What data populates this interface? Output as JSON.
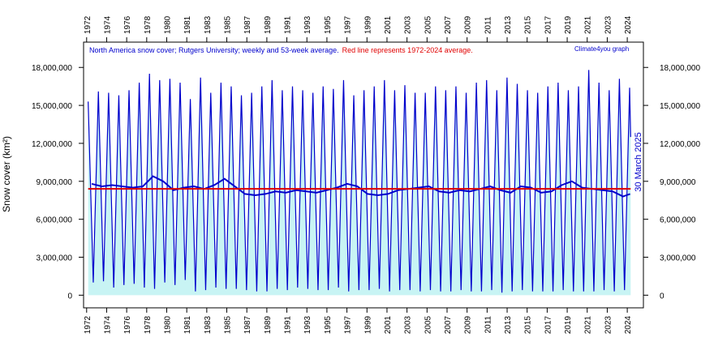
{
  "chart_data": {
    "type": "line",
    "title": "North America  snow cover; Rutgers University; weekly and 53-week average.",
    "subtitle": "Red line represents 1972-2024 average.",
    "credit": "Climate4you graph",
    "ylabel": "Snow cover (km²)",
    "annotation": "30 March 2025",
    "xlim": [
      1971.7,
      2026.5
    ],
    "ylim": [
      -1000000,
      20000000
    ],
    "xticks": [
      {
        "value": 1972,
        "label": "1972"
      },
      {
        "value": 1973.96,
        "label": "1974"
      },
      {
        "value": 1975.92,
        "label": "1976"
      },
      {
        "value": 1977.88,
        "label": "1978"
      },
      {
        "value": 1979.84,
        "label": "1980"
      },
      {
        "value": 1981.8,
        "label": "1981"
      },
      {
        "value": 1983.76,
        "label": "1983"
      },
      {
        "value": 1985.72,
        "label": "1985"
      },
      {
        "value": 1987.68,
        "label": "1987"
      },
      {
        "value": 1989.64,
        "label": "1989"
      },
      {
        "value": 1991.6,
        "label": "1991"
      },
      {
        "value": 1993.56,
        "label": "1993"
      },
      {
        "value": 1995.52,
        "label": "1995"
      },
      {
        "value": 1997.48,
        "label": "1997"
      },
      {
        "value": 1999.44,
        "label": "1999"
      },
      {
        "value": 2001.4,
        "label": "2001"
      },
      {
        "value": 2003.36,
        "label": "2003"
      },
      {
        "value": 2005.32,
        "label": "2005"
      },
      {
        "value": 2007.28,
        "label": "2007"
      },
      {
        "value": 2009.24,
        "label": "2009"
      },
      {
        "value": 2011.2,
        "label": "2011"
      },
      {
        "value": 2013.16,
        "label": "2013"
      },
      {
        "value": 2015.12,
        "label": "2015"
      },
      {
        "value": 2017.08,
        "label": "2017"
      },
      {
        "value": 2019.04,
        "label": "2019"
      },
      {
        "value": 2021.0,
        "label": "2021"
      },
      {
        "value": 2022.96,
        "label": "2023"
      },
      {
        "value": 2024.92,
        "label": "2024"
      }
    ],
    "yticks": [
      0,
      {
        "value": 3000000,
        "label": "3,000,000"
      },
      {
        "value": 6000000,
        "label": "6,000,000"
      },
      {
        "value": 9000000,
        "label": "9,000,000"
      },
      {
        "value": 12000000,
        "label": "12,000,000"
      },
      {
        "value": 15000000,
        "label": "15,000,000"
      },
      {
        "value": 18000000,
        "label": "18,000,000"
      }
    ],
    "average": 8400000,
    "average_color": "#e00000",
    "fill_color": "#c8f4f4",
    "series": [
      {
        "name": "weekly",
        "color": "#0000cc",
        "x": [
          1972.15,
          1972.65,
          1973.15,
          1973.65,
          1974.15,
          1974.65,
          1975.15,
          1975.65,
          1976.15,
          1976.65,
          1977.15,
          1977.65,
          1978.15,
          1978.65,
          1979.15,
          1979.65,
          1980.15,
          1980.65,
          1981.15,
          1981.65,
          1982.15,
          1982.65,
          1983.15,
          1983.65,
          1984.15,
          1984.65,
          1985.15,
          1985.65,
          1986.15,
          1986.65,
          1987.15,
          1987.65,
          1988.15,
          1988.65,
          1989.15,
          1989.65,
          1990.15,
          1990.65,
          1991.15,
          1991.65,
          1992.15,
          1992.65,
          1993.15,
          1993.65,
          1994.15,
          1994.65,
          1995.15,
          1995.65,
          1996.15,
          1996.65,
          1997.15,
          1997.65,
          1998.15,
          1998.65,
          1999.15,
          1999.65,
          2000.15,
          2000.65,
          2001.15,
          2001.65,
          2002.15,
          2002.65,
          2003.15,
          2003.65,
          2004.15,
          2004.65,
          2005.15,
          2005.65,
          2006.15,
          2006.65,
          2007.15,
          2007.65,
          2008.15,
          2008.65,
          2009.15,
          2009.65,
          2010.15,
          2010.65,
          2011.15,
          2011.65,
          2012.15,
          2012.65,
          2013.15,
          2013.65,
          2014.15,
          2014.65,
          2015.15,
          2015.65,
          2016.15,
          2016.65,
          2017.15,
          2017.65,
          2018.15,
          2018.65,
          2019.15,
          2019.65,
          2020.15,
          2020.65,
          2021.15,
          2021.65,
          2022.15,
          2022.65,
          2023.15,
          2023.65,
          2024.15,
          2024.65,
          2025.15,
          2025.25
        ],
        "values": [
          15300000,
          1000000,
          16100000,
          1100000,
          16000000,
          600000,
          15800000,
          800000,
          16200000,
          900000,
          16800000,
          600000,
          17500000,
          500000,
          17000000,
          1000000,
          17100000,
          800000,
          16800000,
          1200000,
          15500000,
          300000,
          17200000,
          400000,
          16000000,
          600000,
          16800000,
          500000,
          16500000,
          500000,
          15800000,
          400000,
          16000000,
          300000,
          16500000,
          300000,
          17000000,
          500000,
          16200000,
          400000,
          16500000,
          600000,
          16200000,
          500000,
          16000000,
          400000,
          16500000,
          400000,
          16300000,
          600000,
          17000000,
          300000,
          15800000,
          400000,
          16200000,
          400000,
          16500000,
          500000,
          17000000,
          300000,
          16200000,
          400000,
          16600000,
          400000,
          16000000,
          300000,
          16000000,
          400000,
          16500000,
          300000,
          16200000,
          300000,
          16500000,
          400000,
          16000000,
          300000,
          16800000,
          300000,
          17000000,
          400000,
          16200000,
          200000,
          17200000,
          300000,
          16700000,
          400000,
          16200000,
          300000,
          16000000,
          300000,
          16500000,
          300000,
          16800000,
          400000,
          16200000,
          300000,
          16500000,
          300000,
          17800000,
          300000,
          16800000,
          400000,
          16200000,
          300000,
          17100000,
          400000,
          16400000,
          12500000
        ]
      },
      {
        "name": "53-week average",
        "color": "#0000cc",
        "x": [
          1972.5,
          1973.5,
          1974.5,
          1975.5,
          1976.5,
          1977.5,
          1978.5,
          1979.5,
          1980.5,
          1981.5,
          1982.5,
          1983.5,
          1984.5,
          1985.5,
          1986.5,
          1987.5,
          1988.5,
          1989.5,
          1990.5,
          1991.5,
          1992.5,
          1993.5,
          1994.5,
          1995.5,
          1996.5,
          1997.5,
          1998.5,
          1999.5,
          2000.5,
          2001.5,
          2002.5,
          2003.5,
          2004.5,
          2005.5,
          2006.5,
          2007.5,
          2008.5,
          2009.5,
          2010.5,
          2011.5,
          2012.5,
          2013.5,
          2014.5,
          2015.5,
          2016.5,
          2017.5,
          2018.5,
          2019.5,
          2020.5,
          2021.5,
          2022.5,
          2023.5,
          2024.5,
          2025.2
        ],
        "values": [
          8800000,
          8600000,
          8700000,
          8600000,
          8500000,
          8600000,
          9400000,
          9000000,
          8300000,
          8500000,
          8600000,
          8400000,
          8700000,
          9200000,
          8600000,
          8000000,
          7900000,
          8000000,
          8200000,
          8100000,
          8300000,
          8200000,
          8100000,
          8300000,
          8500000,
          8800000,
          8600000,
          8000000,
          7900000,
          8000000,
          8300000,
          8400000,
          8500000,
          8600000,
          8200000,
          8100000,
          8300000,
          8200000,
          8400000,
          8600000,
          8300000,
          8100000,
          8600000,
          8500000,
          8100000,
          8200000,
          8700000,
          9000000,
          8500000,
          8400000,
          8300000,
          8200000,
          7800000,
          8000000
        ]
      }
    ]
  }
}
